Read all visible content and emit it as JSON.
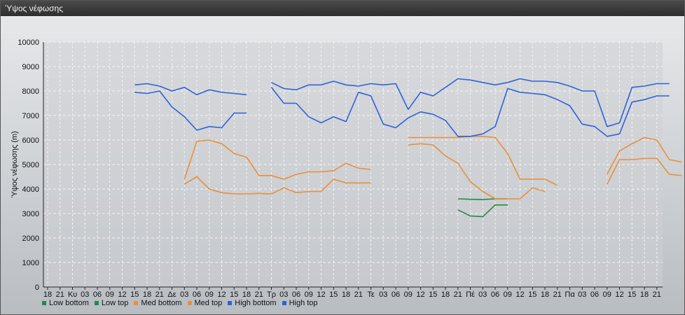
{
  "window": {
    "title": "Ύψος νέφωσης"
  },
  "chart_data": {
    "type": "line",
    "ylabel": "Ύψος νέφωσης (m)",
    "ylim": [
      0,
      10000
    ],
    "yticks": [
      0,
      1000,
      2000,
      3000,
      4000,
      5000,
      6000,
      7000,
      8000,
      9000,
      10000
    ],
    "x_tick_labels": [
      "18",
      "21",
      "Κυ",
      "03",
      "06",
      "09",
      "12",
      "15",
      "18",
      "21",
      "Δε",
      "03",
      "06",
      "09",
      "12",
      "15",
      "18",
      "21",
      "Τρ",
      "03",
      "06",
      "09",
      "12",
      "15",
      "18",
      "21",
      "Τε",
      "03",
      "06",
      "09",
      "12",
      "15",
      "18",
      "21",
      "Πέ",
      "03",
      "06",
      "09",
      "12",
      "15",
      "18",
      "21",
      "Πα",
      "03",
      "06",
      "09",
      "12",
      "15",
      "18",
      "21"
    ],
    "grid": true,
    "legend_placement": "bottom-left",
    "series": [
      {
        "name": "Low bottom",
        "color": "#1f8a4c",
        "points": [
          [
            33,
            3150
          ],
          [
            34,
            2900
          ],
          [
            35,
            2870
          ],
          [
            36,
            3350
          ],
          [
            37,
            3350
          ]
        ]
      },
      {
        "name": "Low top",
        "color": "#1f8a4c",
        "points": [
          [
            33,
            3600
          ],
          [
            34,
            3580
          ],
          [
            35,
            3570
          ],
          [
            36,
            3600
          ],
          [
            37,
            3600
          ]
        ]
      },
      {
        "name": "Med bottom",
        "color": "#e8903a",
        "points": [
          [
            11,
            4200
          ],
          [
            12,
            4500
          ],
          [
            13,
            4000
          ],
          [
            14,
            3850
          ],
          [
            15,
            3800
          ],
          [
            16,
            3800
          ],
          [
            17,
            3820
          ],
          [
            18,
            3800
          ],
          [
            19,
            4050
          ],
          [
            20,
            3850
          ],
          [
            21,
            3900
          ],
          [
            22,
            3900
          ],
          [
            23,
            4400
          ],
          [
            24,
            4250
          ],
          [
            25,
            4250
          ],
          [
            26,
            4250
          ],
          [
            null,
            null
          ],
          [
            29,
            5800
          ],
          [
            30,
            5850
          ],
          [
            31,
            5800
          ],
          [
            32,
            5350
          ],
          [
            33,
            5050
          ],
          [
            34,
            4300
          ],
          [
            35,
            3900
          ],
          [
            36,
            3600
          ],
          [
            37,
            3600
          ],
          [
            38,
            3600
          ],
          [
            39,
            4050
          ],
          [
            40,
            3900
          ],
          [
            null,
            null
          ],
          [
            45,
            4200
          ],
          [
            46,
            5200
          ],
          [
            47,
            5200
          ],
          [
            48,
            5250
          ],
          [
            49,
            5250
          ],
          [
            50,
            4600
          ],
          [
            51,
            4550
          ]
        ]
      },
      {
        "name": "Med top",
        "color": "#e8903a",
        "points": [
          [
            11,
            4400
          ],
          [
            12,
            5950
          ],
          [
            13,
            6000
          ],
          [
            14,
            5850
          ],
          [
            15,
            5450
          ],
          [
            16,
            5300
          ],
          [
            17,
            4550
          ],
          [
            18,
            4550
          ],
          [
            19,
            4400
          ],
          [
            20,
            4600
          ],
          [
            21,
            4700
          ],
          [
            22,
            4700
          ],
          [
            23,
            4750
          ],
          [
            24,
            5050
          ],
          [
            25,
            4850
          ],
          [
            26,
            4800
          ],
          [
            null,
            null
          ],
          [
            29,
            6100
          ],
          [
            30,
            6100
          ],
          [
            31,
            6100
          ],
          [
            32,
            6100
          ],
          [
            33,
            6100
          ],
          [
            34,
            6150
          ],
          [
            35,
            6150
          ],
          [
            36,
            6100
          ],
          [
            37,
            5450
          ],
          [
            38,
            4400
          ],
          [
            39,
            4400
          ],
          [
            40,
            4400
          ],
          [
            41,
            4150
          ],
          [
            null,
            null
          ],
          [
            45,
            4600
          ],
          [
            46,
            5550
          ],
          [
            47,
            5850
          ],
          [
            48,
            6100
          ],
          [
            49,
            6000
          ],
          [
            50,
            5200
          ],
          [
            51,
            5100
          ]
        ]
      },
      {
        "name": "High bottom",
        "color": "#2f62d8",
        "points": [
          [
            7,
            7950
          ],
          [
            8,
            7900
          ],
          [
            9,
            8000
          ],
          [
            10,
            7350
          ],
          [
            11,
            6950
          ],
          [
            12,
            6400
          ],
          [
            13,
            6550
          ],
          [
            14,
            6500
          ],
          [
            15,
            7100
          ],
          [
            16,
            7100
          ],
          [
            null,
            null
          ],
          [
            18,
            8150
          ],
          [
            19,
            7500
          ],
          [
            20,
            7500
          ],
          [
            21,
            6950
          ],
          [
            22,
            6700
          ],
          [
            23,
            6950
          ],
          [
            24,
            6750
          ],
          [
            25,
            7950
          ],
          [
            26,
            7800
          ],
          [
            27,
            6650
          ],
          [
            28,
            6500
          ],
          [
            29,
            6900
          ],
          [
            30,
            7150
          ],
          [
            31,
            7050
          ],
          [
            32,
            6800
          ],
          [
            33,
            6150
          ],
          [
            34,
            6150
          ],
          [
            35,
            6250
          ],
          [
            36,
            6550
          ],
          [
            37,
            8100
          ],
          [
            38,
            7950
          ],
          [
            39,
            7900
          ],
          [
            40,
            7850
          ],
          [
            41,
            7650
          ],
          [
            42,
            7400
          ],
          [
            43,
            6650
          ],
          [
            44,
            6550
          ],
          [
            45,
            6150
          ],
          [
            46,
            6250
          ],
          [
            47,
            7550
          ],
          [
            48,
            7650
          ],
          [
            49,
            7800
          ],
          [
            50,
            7800
          ]
        ]
      },
      {
        "name": "High top",
        "color": "#2f62d8",
        "points": [
          [
            7,
            8250
          ],
          [
            8,
            8300
          ],
          [
            9,
            8200
          ],
          [
            10,
            8000
          ],
          [
            11,
            8150
          ],
          [
            12,
            7850
          ],
          [
            13,
            8050
          ],
          [
            14,
            7950
          ],
          [
            15,
            7900
          ],
          [
            16,
            7850
          ],
          [
            null,
            null
          ],
          [
            18,
            8350
          ],
          [
            19,
            8100
          ],
          [
            20,
            8050
          ],
          [
            21,
            8250
          ],
          [
            22,
            8250
          ],
          [
            23,
            8400
          ],
          [
            24,
            8250
          ],
          [
            25,
            8200
          ],
          [
            26,
            8300
          ],
          [
            27,
            8250
          ],
          [
            28,
            8300
          ],
          [
            29,
            7250
          ],
          [
            30,
            7950
          ],
          [
            31,
            7800
          ],
          [
            32,
            8150
          ],
          [
            33,
            8500
          ],
          [
            34,
            8450
          ],
          [
            35,
            8350
          ],
          [
            36,
            8250
          ],
          [
            37,
            8350
          ],
          [
            38,
            8500
          ],
          [
            39,
            8400
          ],
          [
            40,
            8400
          ],
          [
            41,
            8350
          ],
          [
            42,
            8200
          ],
          [
            43,
            8000
          ],
          [
            44,
            8000
          ],
          [
            45,
            6550
          ],
          [
            46,
            6700
          ],
          [
            47,
            8150
          ],
          [
            48,
            8200
          ],
          [
            49,
            8300
          ],
          [
            50,
            8300
          ]
        ]
      }
    ]
  }
}
